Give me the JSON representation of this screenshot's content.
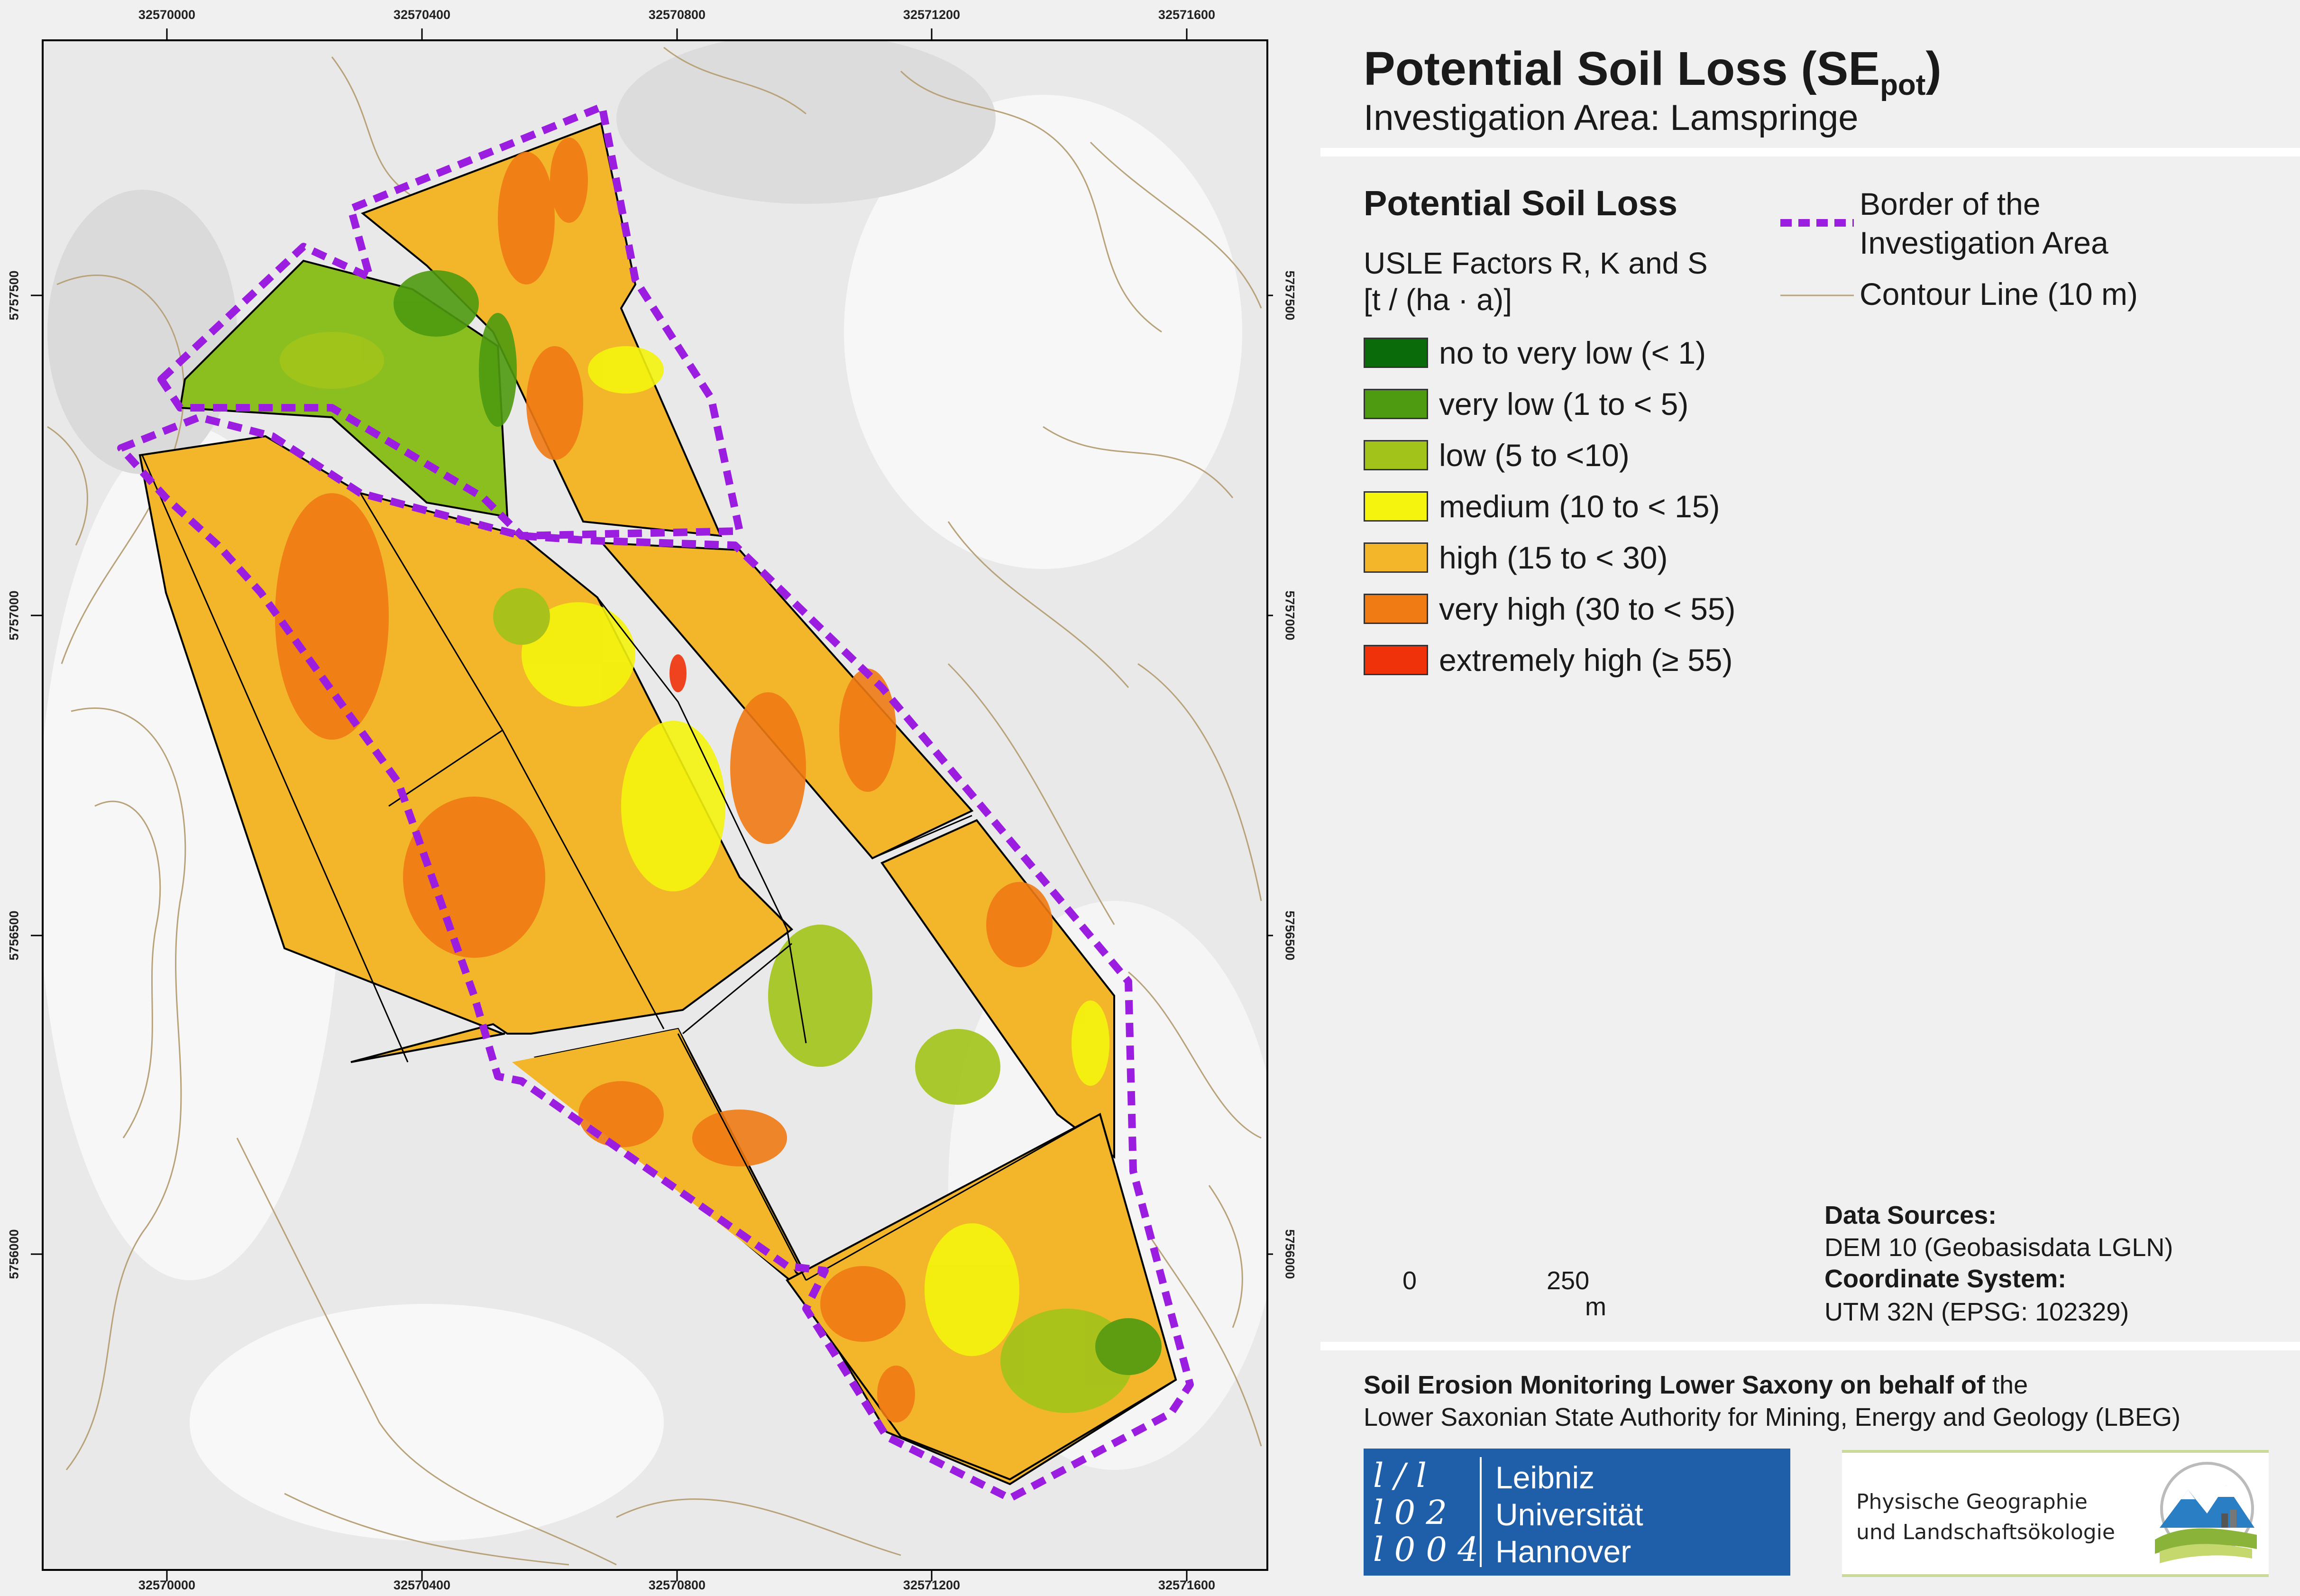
{
  "map": {
    "coords_top": [
      "32570000",
      "32570400",
      "32570800",
      "32571200",
      "32571600"
    ],
    "coords_bottom": [
      "32570000",
      "32570400",
      "32570800",
      "32571200",
      "32571600"
    ],
    "coords_left": [
      "5757500",
      "5757000",
      "5756500",
      "5756000"
    ],
    "coords_right": [
      "5757500",
      "5757000",
      "5756500",
      "5756000"
    ],
    "scalebar": {
      "start": "0",
      "mid": "250",
      "unit": "m"
    },
    "colors": {
      "hillshade": "#e6e6e6",
      "contour": "#b8a27a",
      "border": "#9b1de0"
    }
  },
  "header": {
    "title": "Potential Soil Loss (SE",
    "title_sub": "pot",
    "title_end": ")",
    "subtitle": "Investigation Area: Lamspringe"
  },
  "legend": {
    "heading": "Potential Soil Loss",
    "subheading_1": "USLE Factors R, K and S",
    "subheading_2": "[t / (ha · a)]",
    "classes": [
      {
        "label": "no to very low (< 1)",
        "color": "#0a6b0a"
      },
      {
        "label": "very low (1 to < 5)",
        "color": "#4e9a10"
      },
      {
        "label": "low (5 to <10)",
        "color": "#a2c41a"
      },
      {
        "label": "medium (10 to < 15)",
        "color": "#f4f40e"
      },
      {
        "label": "high (15 to < 30)",
        "color": "#f3b62b"
      },
      {
        "label": "very high (30 to < 55)",
        "color": "#f07a14"
      },
      {
        "label": "extremely high (≥ 55)",
        "color": "#f0320a"
      }
    ],
    "border_label_1": "Border of the",
    "border_label_2": "Investigation Area",
    "contour_label": "Contour Line (10 m)"
  },
  "sources": {
    "data_sources_heading": "Data Sources:",
    "data_sources_value": "DEM 10 (Geobasisdata LGLN)",
    "coord_system_heading": "Coordinate System:",
    "coord_system_value": "UTM 32N (EPSG: 102329)"
  },
  "footer": {
    "line1_bold": "Soil Erosion Monitoring Lower Saxony on behalf of",
    "line1_rest": " the",
    "line2": "Lower Saxonian State Authority for Mining, Energy and Geology (LBEG)",
    "luh_name_1": "Leibniz",
    "luh_name_2": "Universität",
    "luh_name_3": "Hannover",
    "luh_glyphs_1": "l / l",
    "luh_glyphs_2": "l 0 2",
    "luh_glyphs_3": "l 0 0 4",
    "pg_line1": "Physische Geographie",
    "pg_line2": "und Landschaftsökologie"
  }
}
